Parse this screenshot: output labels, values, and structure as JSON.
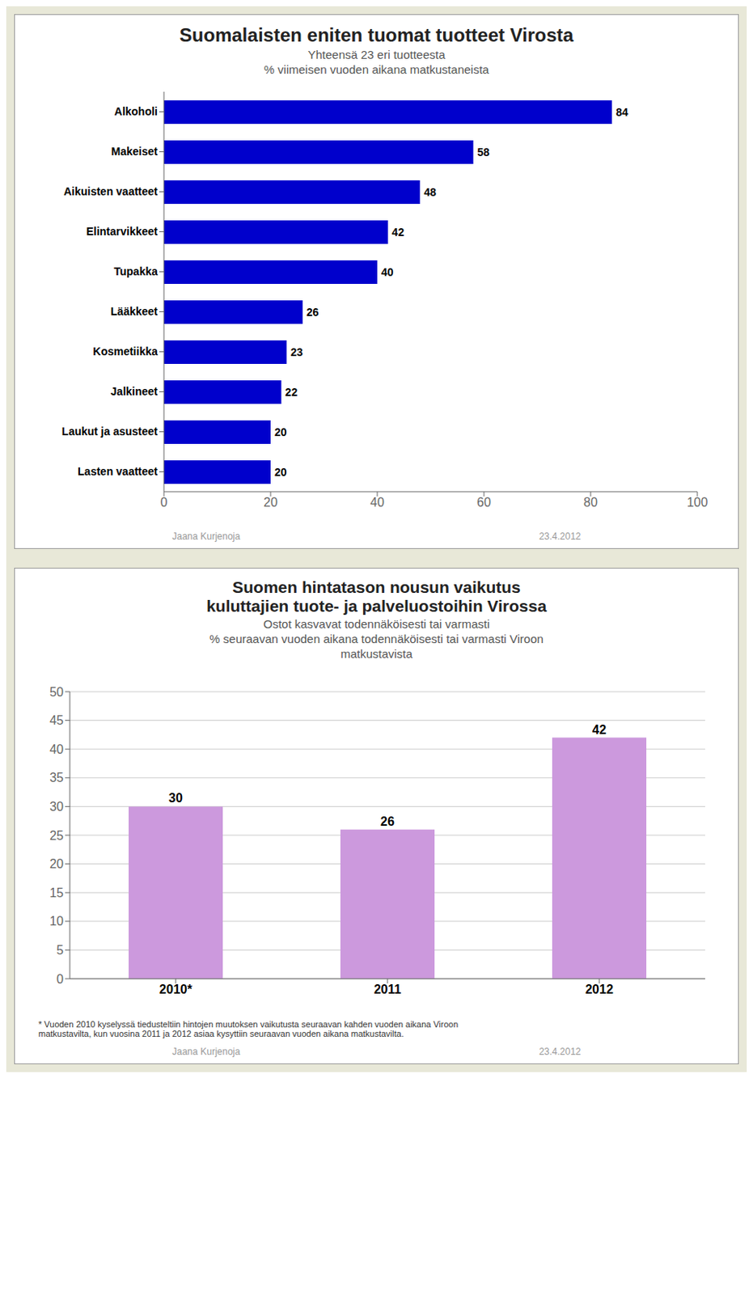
{
  "chart_data": [
    {
      "type": "bar",
      "orientation": "horizontal",
      "title": "Suomalaisten eniten tuomat tuotteet Virosta",
      "subtitle": [
        "Yhteensä 23 eri tuotteesta",
        "% viimeisen vuoden aikana matkustaneista"
      ],
      "categories": [
        "Alkoholi",
        "Makeiset",
        "Aikuisten vaatteet",
        "Elintarvikkeet",
        "Tupakka",
        "Lääkkeet",
        "Kosmetiikka",
        "Jalkineet",
        "Laukut ja asusteet",
        "Lasten vaatteet"
      ],
      "values": [
        84,
        58,
        48,
        42,
        40,
        26,
        23,
        22,
        20,
        20
      ],
      "color": "#0000cc",
      "xlim": [
        0,
        100
      ],
      "xticks": [
        0,
        20,
        40,
        60,
        80,
        100
      ],
      "grid": false,
      "data_labels": true,
      "annotations": [
        "Jaana Kurjenoja",
        "23.4.2012"
      ]
    },
    {
      "type": "bar",
      "title": [
        "Suomen hintatason nousun vaikutus",
        "kuluttajien tuote- ja palveluostoihin Virossa"
      ],
      "subtitle": [
        "Ostot kasvavat todennäköisesti tai varmasti",
        "% seuraavan vuoden aikana todennäköisesti tai varmasti Viroon",
        "matkustavista"
      ],
      "categories": [
        "2010*",
        "2011",
        "2012"
      ],
      "values": [
        30,
        26,
        42
      ],
      "color": "#cc99dd",
      "ylim": [
        0,
        50
      ],
      "yticks": [
        0,
        5,
        10,
        15,
        20,
        25,
        30,
        35,
        40,
        45,
        50
      ],
      "grid": true,
      "data_labels": true,
      "footnote": "* Vuoden 2010 kyselyssä tiedusteltiin hintojen muutoksen vaikutusta seuraavan kahden vuoden aikana Viroon\nmatkustavilta, kun vuosina 2011 ja 2012 asiaa kysyttiin seuraavan vuoden aikana matkustavilta.",
      "annotations": [
        "Jaana Kurjenoja",
        "23.4.2012"
      ]
    }
  ]
}
